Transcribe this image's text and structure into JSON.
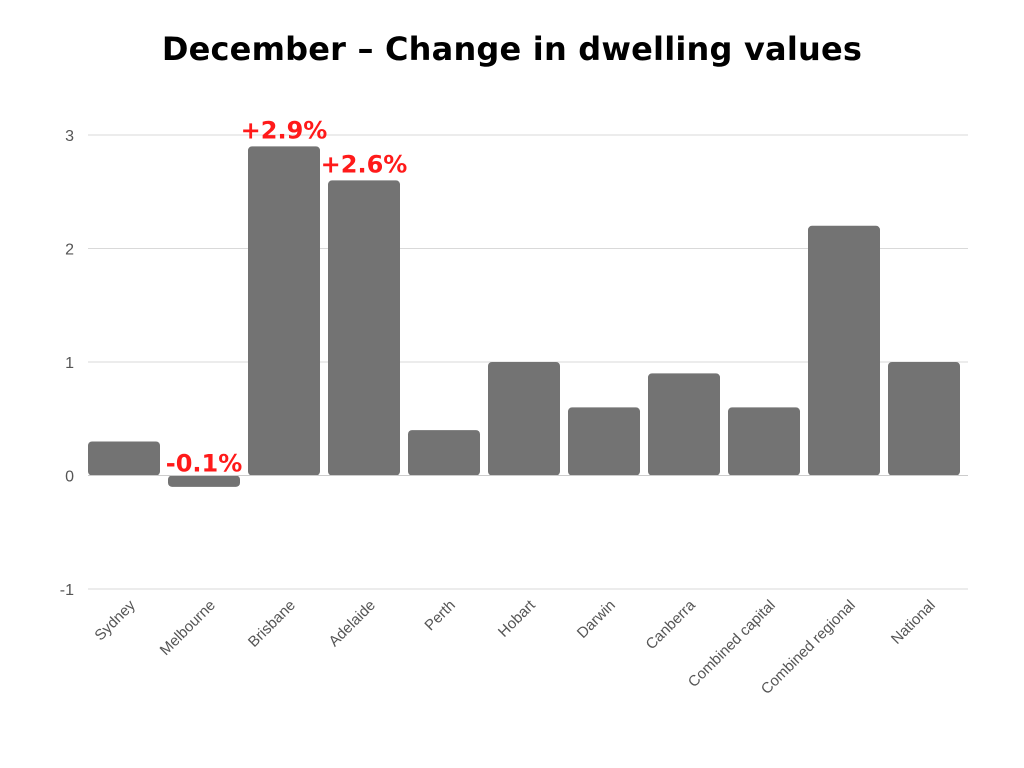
{
  "chart_data": {
    "type": "bar",
    "title": "December – Change in dwelling values",
    "xlabel": "",
    "ylabel": "",
    "categories": [
      "Sydney",
      "Melbourne",
      "Brisbane",
      "Adelaide",
      "Perth",
      "Hobart",
      "Darwin",
      "Canberra",
      "Combined capital",
      "Combined regional",
      "National"
    ],
    "values": [
      0.3,
      -0.1,
      2.9,
      2.6,
      0.4,
      1.0,
      0.6,
      0.9,
      0.6,
      2.2,
      1.0
    ],
    "ylim": [
      -1,
      3
    ],
    "yticks": [
      3,
      2,
      1,
      0,
      -1
    ],
    "grid": true,
    "bar_color": "#737373",
    "annotations": [
      {
        "category": "Melbourne",
        "text": "-0.1%",
        "color": "#ff1a1a"
      },
      {
        "category": "Brisbane",
        "text": "+2.9%",
        "color": "#ff1a1a"
      },
      {
        "category": "Adelaide",
        "text": "+2.6%",
        "color": "#ff1a1a"
      }
    ]
  }
}
